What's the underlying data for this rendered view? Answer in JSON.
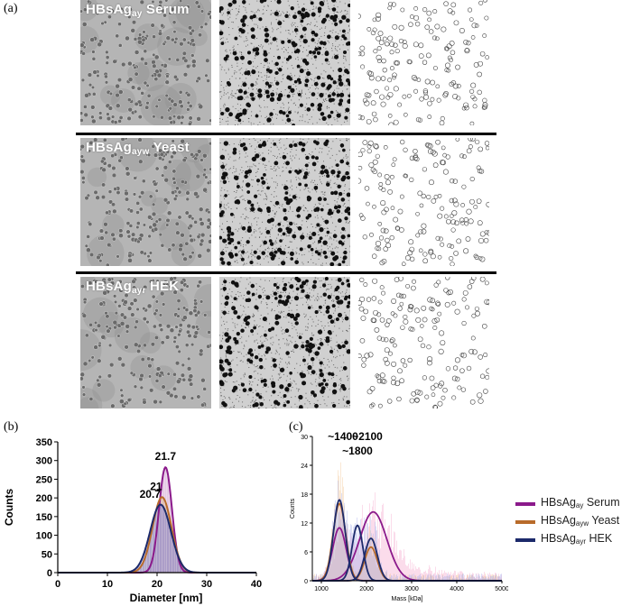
{
  "panels": {
    "a": "(a)",
    "b": "(b)",
    "c": "(c)"
  },
  "micrograph_rows": [
    {
      "label_main": "HBsAg",
      "label_sub": "ay",
      "label_host": "Serum"
    },
    {
      "label_main": "HBsAg",
      "label_sub": "ayw",
      "label_host": "Yeast"
    },
    {
      "label_main": "HBsAg",
      "label_sub": "ayr",
      "label_host": "HEK"
    }
  ],
  "legend": [
    {
      "main": "HBsAg",
      "sub": "ay",
      "host": "Serum",
      "color": "#8b1a8b"
    },
    {
      "main": "HBsAg",
      "sub": "ayw",
      "host": "Yeast",
      "color": "#b86b2a"
    },
    {
      "main": "HBsAg",
      "sub": "ayr",
      "host": "HEK",
      "color": "#1c2a6b"
    }
  ],
  "chart_data": [
    {
      "type": "bar",
      "panel": "(b)",
      "xlabel": "Diameter [nm]",
      "ylabel": "Counts",
      "xlim": [
        0,
        40
      ],
      "ylim": [
        0,
        350
      ],
      "x_ticks": [
        "0",
        "10",
        "20",
        "30",
        "40"
      ],
      "y_ticks": [
        "0",
        "50",
        "100",
        "150",
        "200",
        "250",
        "300",
        "350"
      ],
      "fits": [
        {
          "host": "Serum",
          "color": "#8b1a8b",
          "mean": 21.7,
          "sd": 1.3,
          "peak": 282
        },
        {
          "host": "Yeast",
          "color": "#b86b2a",
          "mean": 21.0,
          "sd": 1.9,
          "peak": 202
        },
        {
          "host": "HEK",
          "color": "#1c2a6b",
          "mean": 20.7,
          "sd": 2.1,
          "peak": 182
        }
      ],
      "annotations": [
        "21.7",
        "21",
        "20.7"
      ]
    },
    {
      "type": "bar",
      "panel": "(c)",
      "xlabel": "Mass [kDa]",
      "ylabel": "Counts",
      "xlim": [
        800,
        5000
      ],
      "ylim": [
        0,
        30
      ],
      "x_ticks": [
        "1000",
        "2000",
        "3000",
        "4000",
        "5000"
      ],
      "y_ticks": [
        "0",
        "6",
        "12",
        "18",
        "24",
        "30"
      ],
      "fits": [
        {
          "host": "Serum",
          "color": "#8b1a8b",
          "components": [
            {
              "mean": 1400,
              "sd": 150,
              "peak": 11
            },
            {
              "mean": 2150,
              "sd": 300,
              "peak": 14.3
            }
          ]
        },
        {
          "host": "Yeast",
          "color": "#b86b2a",
          "components": [
            {
              "mean": 1400,
              "sd": 140,
              "peak": 16
            },
            {
              "mean": 2100,
              "sd": 140,
              "peak": 7
            }
          ]
        },
        {
          "host": "HEK",
          "color": "#1c2a6b",
          "components": [
            {
              "mean": 1400,
              "sd": 130,
              "peak": 16.8
            },
            {
              "mean": 1800,
              "sd": 120,
              "peak": 11.5
            },
            {
              "mean": 2100,
              "sd": 140,
              "peak": 8.8
            }
          ]
        }
      ],
      "annotations": [
        "~1400",
        "~2100",
        "~1800"
      ]
    }
  ]
}
